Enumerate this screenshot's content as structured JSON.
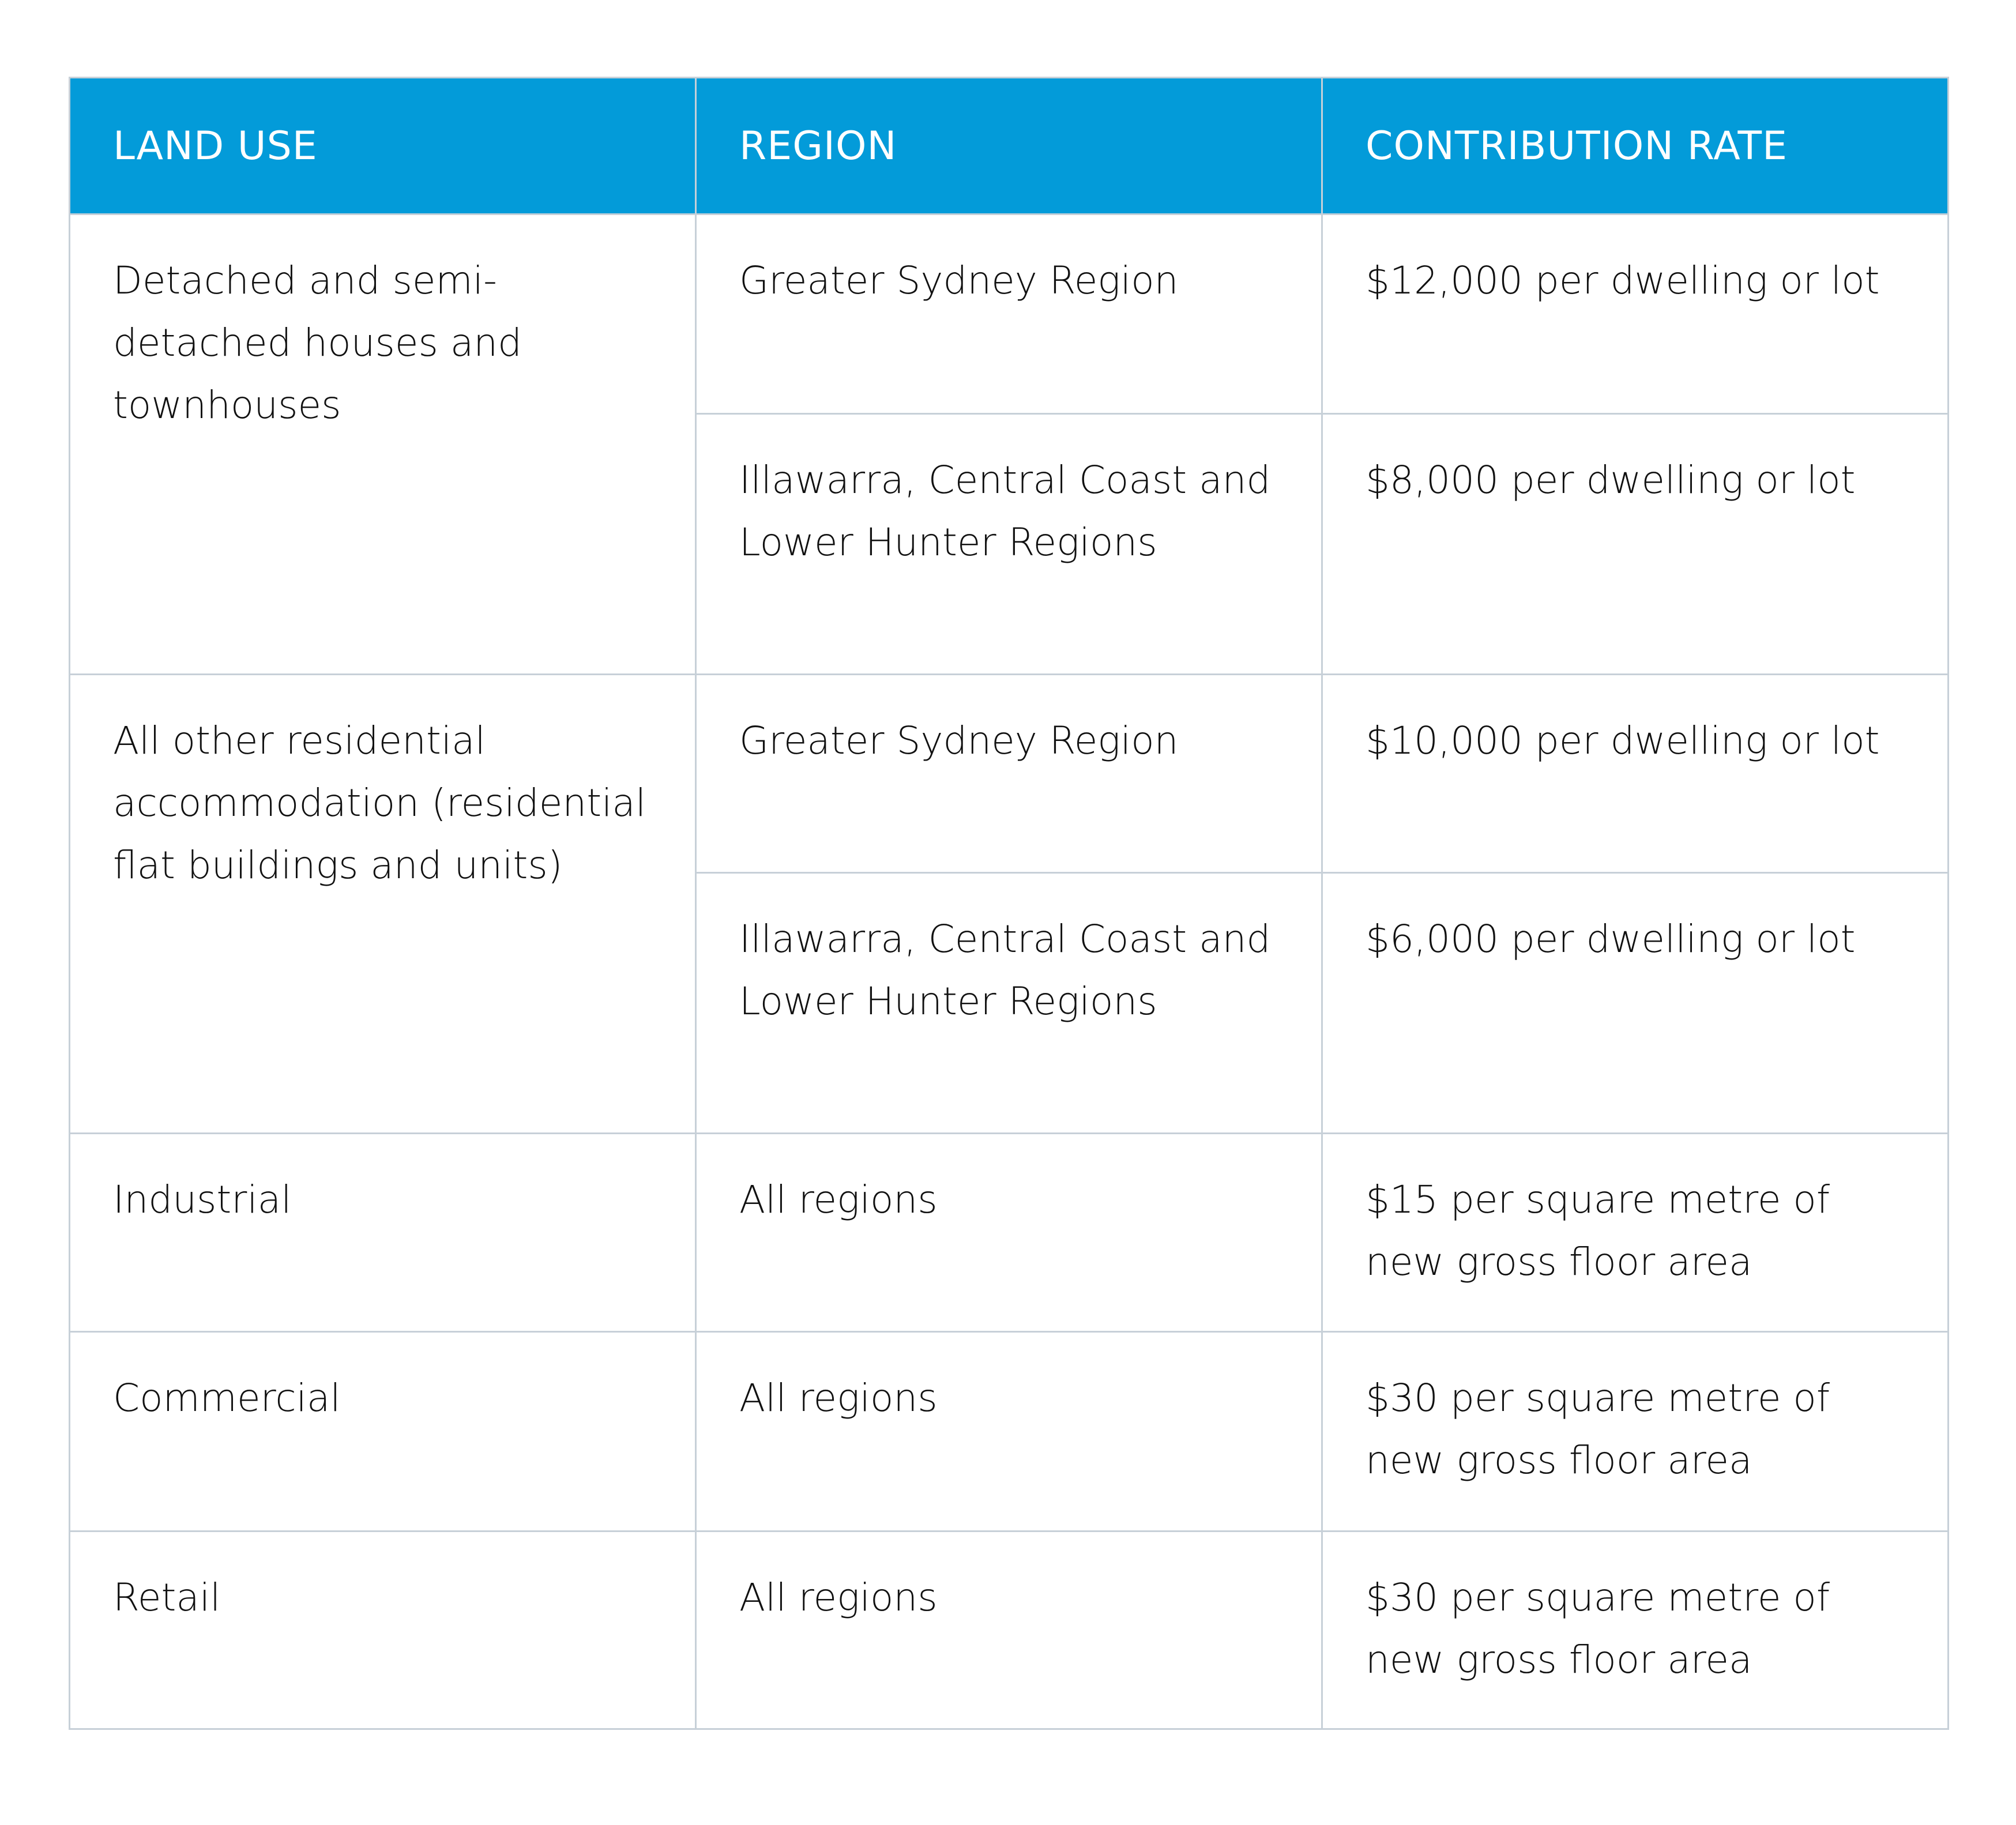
{
  "colors": {
    "header_bg": "#039bd9",
    "header_text": "#ffffff",
    "border": "#c7d0d8",
    "body_text": "#111111"
  },
  "table": {
    "headers": [
      "LAND USE",
      "REGION",
      "CONTRIBUTION RATE"
    ],
    "groups": [
      {
        "land_use": "Detached and semi-detached houses and townhouses",
        "rows": [
          {
            "region": "Greater Sydney Region",
            "rate": "$12,000 per dwelling or lot"
          },
          {
            "region": "Illawarra, Central Coast and Lower Hunter Regions",
            "rate": "$8,000 per dwelling or lot"
          }
        ]
      },
      {
        "land_use": "All other residential accommodation (residential flat buildings and units)",
        "rows": [
          {
            "region": "Greater Sydney Region",
            "rate": "$10,000 per dwelling or lot"
          },
          {
            "region": "Illawarra, Central Coast and Lower Hunter Regions",
            "rate": "$6,000 per dwelling or lot"
          }
        ]
      },
      {
        "land_use": "Industrial",
        "rows": [
          {
            "region": "All regions",
            "rate": "$15 per square metre of new gross floor area"
          }
        ]
      },
      {
        "land_use": "Commercial",
        "rows": [
          {
            "region": "All regions",
            "rate": "$30 per square metre of new gross floor area"
          }
        ]
      },
      {
        "land_use": "Retail",
        "rows": [
          {
            "region": "All regions",
            "rate": "$30 per square metre of new gross floor area"
          }
        ]
      }
    ]
  }
}
